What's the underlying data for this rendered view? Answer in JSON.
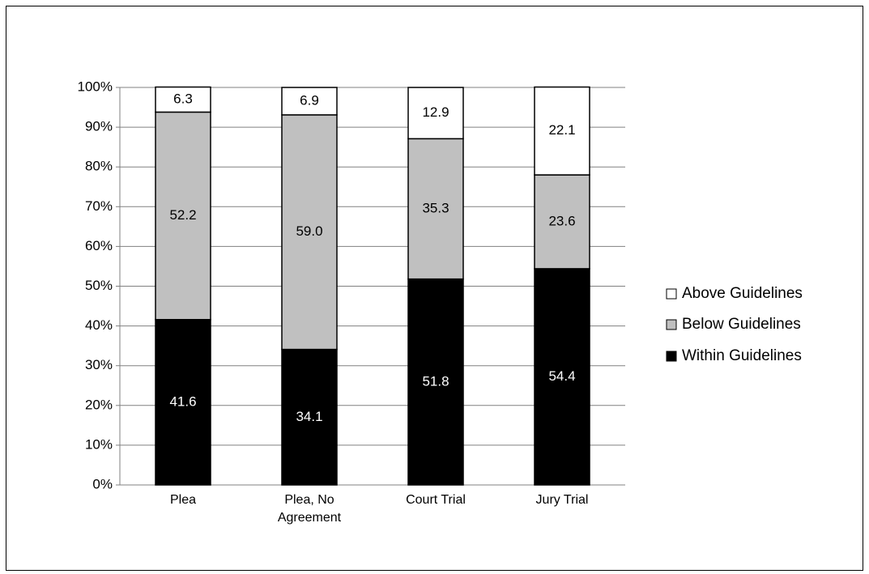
{
  "chart_data": {
    "type": "stacked_bar",
    "categories": [
      "Plea",
      "Plea, No Agreement",
      "Court Trial",
      "Jury Trial"
    ],
    "series": [
      {
        "name": "Within Guidelines",
        "color": "#000000",
        "values": [
          41.6,
          34.1,
          51.8,
          54.4
        ]
      },
      {
        "name": "Below Guidelines",
        "color": "#c0c0c0",
        "values": [
          52.2,
          59.0,
          35.3,
          23.6
        ],
        "value_labels": [
          "52.2",
          "59.0",
          "35.3",
          "23.6"
        ]
      },
      {
        "name": "Above Guidelines",
        "color": "#ffffff",
        "values": [
          6.3,
          6.9,
          12.9,
          22.1
        ]
      }
    ],
    "ylim": [
      0,
      100
    ],
    "yticks": [
      {
        "value": 0,
        "label": "0%"
      },
      {
        "value": 10,
        "label": "10%"
      },
      {
        "value": 20,
        "label": "20%"
      },
      {
        "value": 30,
        "label": "30%"
      },
      {
        "value": 40,
        "label": "40%"
      },
      {
        "value": 50,
        "label": "50%"
      },
      {
        "value": 60,
        "label": "60%"
      },
      {
        "value": 70,
        "label": "70%"
      },
      {
        "value": 80,
        "label": "80%"
      },
      {
        "value": 90,
        "label": "90%"
      },
      {
        "value": 100,
        "label": "100%"
      }
    ],
    "grid": true,
    "legend": "right"
  }
}
